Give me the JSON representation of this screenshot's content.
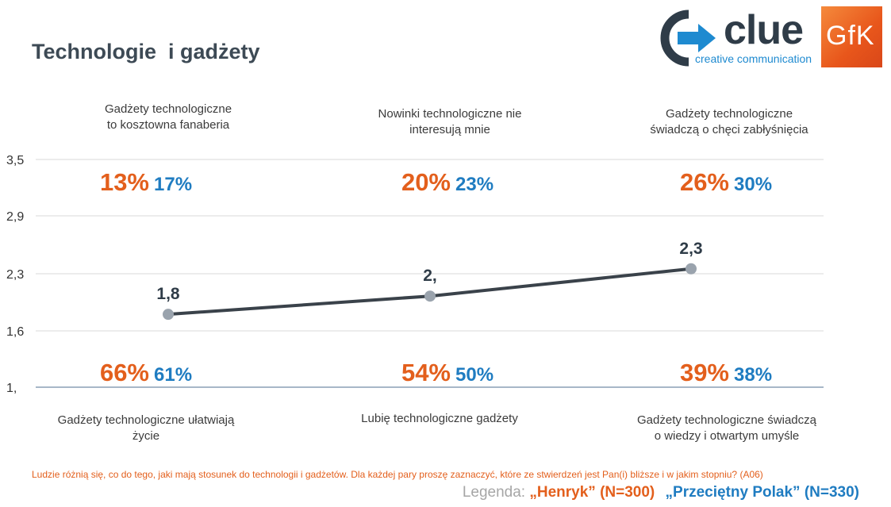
{
  "title": "Technologie  i gadżety",
  "logos": {
    "clue_word": "clue",
    "clue_tagline": "creative communication",
    "gfk": "GfK"
  },
  "chart_data": {
    "type": "line",
    "yticks": [
      "3,5",
      "2,9",
      "2,3",
      "1,6",
      "1,"
    ],
    "ylim": [
      1.0,
      3.5
    ],
    "x": [
      1,
      2,
      3
    ],
    "series": [
      {
        "values": [
          1.8,
          2.0,
          2.3
        ],
        "labels": [
          "1,8",
          "2,",
          "2,3"
        ]
      }
    ],
    "grid": true
  },
  "statements_top": [
    {
      "line1": "Gadżety technologiczne",
      "line2": "to kosztowna fanaberia"
    },
    {
      "line1": "Nowinki technologiczne  nie",
      "line2": "interesują  mnie"
    },
    {
      "line1": "Gadżety technologiczne",
      "line2": "świadczą  o chęci zabłyśnięcia"
    }
  ],
  "statements_bottom": [
    {
      "line1": "Gadżety technologiczne  ułatwiają",
      "line2": "życie"
    },
    {
      "line1": "Lubię technologiczne  gadżety",
      "line2": ""
    },
    {
      "line1": "Gadżety technologiczne  świadczą",
      "line2": "o wiedzy i otwartym umyśle"
    }
  ],
  "percent_top": [
    {
      "henryk": "13%",
      "polak": "17%"
    },
    {
      "henryk": "20%",
      "polak": "23%"
    },
    {
      "henryk": "26%",
      "polak": "30%"
    }
  ],
  "percent_bottom": [
    {
      "henryk": "66%",
      "polak": "61%"
    },
    {
      "henryk": "54%",
      "polak": "50%"
    },
    {
      "henryk": "39%",
      "polak": "38%"
    }
  ],
  "footnote": "Ludzie różnią się, co do tego, jaki mają  stosunek do technologii i gadżetów. Dla  każdej pary proszę zaznaczyć, które ze  stwierdzeń jest Pan(i) bliższe i w jakim stopniu? (A06)",
  "legend": {
    "label": "Legenda:",
    "henryk": "„Henryk” (N=300)",
    "polak": "„Przeciętny Polak” (N=330)"
  },
  "colors": {
    "henryk": "#e35f1c",
    "polak": "#1f7cc1",
    "line": "#3a424a",
    "marker": "#9aa3ad",
    "grid": "#d9d9d9",
    "axis": "#8a9fb5"
  }
}
